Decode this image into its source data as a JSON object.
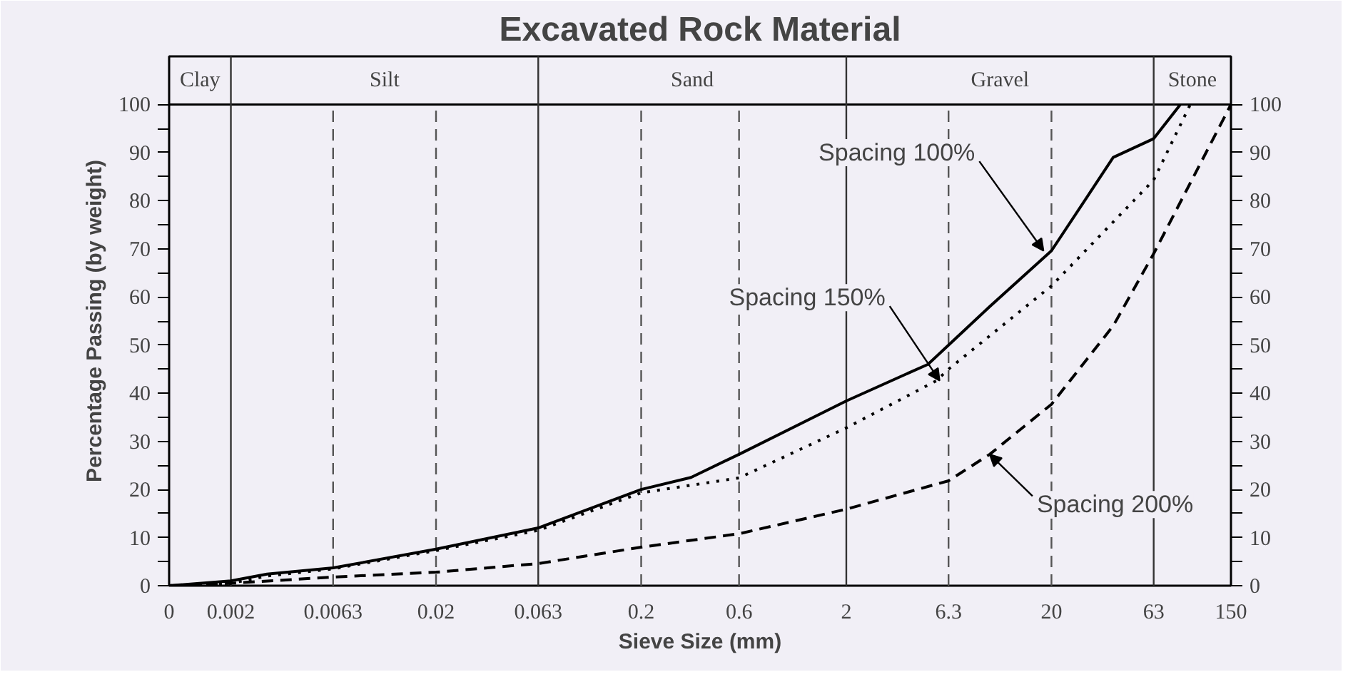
{
  "chart_data": {
    "type": "line",
    "title": "Excavated Rock Material",
    "xlabel": "Sieve Size (mm)",
    "ylabel": "Percentage Passing (by weight)",
    "log": "x",
    "xlim": [
      0.001,
      150
    ],
    "xticks": [
      {
        "value": 0.001,
        "label": "0"
      },
      0.002,
      0.0063,
      0.02,
      0.063,
      0.2,
      0.6,
      2,
      6.3,
      20,
      63,
      150
    ],
    "ylim": [
      0,
      110
    ],
    "yticks": [
      0,
      {
        "value": 5,
        "label": null
      },
      10,
      {
        "value": 15,
        "label": null
      },
      20,
      {
        "value": 25,
        "label": null
      },
      30,
      {
        "value": 35,
        "label": null
      },
      40,
      {
        "value": 45,
        "label": null
      },
      50,
      {
        "value": 55,
        "label": null
      },
      60,
      {
        "value": 65,
        "label": null
      },
      70,
      {
        "value": 75,
        "label": null
      },
      80,
      {
        "value": 85,
        "label": null
      },
      90,
      {
        "value": 95,
        "label": null
      },
      100
    ],
    "y2lim": [
      0,
      110
    ],
    "y2ticks": [
      0,
      {
        "value": 5,
        "label": null
      },
      10,
      {
        "value": 15,
        "label": null
      },
      20,
      {
        "value": 25,
        "label": null
      },
      30,
      {
        "value": 35,
        "label": null
      },
      40,
      {
        "value": 45,
        "label": null
      },
      50,
      {
        "value": 55,
        "label": null
      },
      60,
      {
        "value": 65,
        "label": null
      },
      70,
      {
        "value": 75,
        "label": null
      },
      80,
      {
        "value": 85,
        "label": null
      },
      90,
      {
        "value": 95,
        "label": null
      },
      100
    ],
    "marker": "none",
    "ref_lines": [
      {
        "axis": "y",
        "value": 100,
        "color": "#000000"
      },
      {
        "axis": "x",
        "value": 0.002,
        "color": "#333333"
      },
      {
        "axis": "x",
        "value": 0.063,
        "color": "#333333"
      },
      {
        "axis": "x",
        "value": 2,
        "color": "#333333"
      },
      {
        "axis": "x",
        "value": 63,
        "color": "#333333"
      },
      {
        "axis": "x",
        "value": 0.0063,
        "color": "#555555",
        "line_style": "dashed"
      },
      {
        "axis": "x",
        "value": 0.02,
        "color": "#555555",
        "line_style": "dashed"
      },
      {
        "axis": "x",
        "value": 0.2,
        "color": "#555555",
        "line_style": "dashed"
      },
      {
        "axis": "x",
        "value": 0.6,
        "color": "#555555",
        "line_style": "dashed"
      },
      {
        "axis": "x",
        "value": 6.3,
        "color": "#555555",
        "line_style": "dashed"
      },
      {
        "axis": "x",
        "value": 20,
        "color": "#555555",
        "line_style": "dashed"
      }
    ],
    "series": [
      {
        "color": "#000000",
        "line_style": "solid",
        "x": [
          0.001,
          0.002,
          0.003,
          0.0063,
          0.02,
          0.063,
          0.2,
          0.35,
          0.6,
          2,
          5,
          6.3,
          10,
          20,
          40,
          63,
          85
        ],
        "values": [
          0,
          1,
          2.4,
          3.7,
          7.6,
          12,
          20,
          22.5,
          27.3,
          38.4,
          46,
          50,
          58,
          69.6,
          89,
          92.9,
          100
        ]
      },
      {
        "color": "#000000",
        "line_style": "dotted",
        "x": [
          0.001,
          0.002,
          0.003,
          0.0063,
          0.02,
          0.063,
          0.2,
          0.6,
          2,
          5.5,
          6.3,
          20,
          63,
          95
        ],
        "values": [
          0,
          0.5,
          2,
          3.5,
          7.3,
          11.5,
          19.3,
          22.4,
          32.8,
          42.6,
          45,
          62.3,
          84.3,
          100
        ]
      },
      {
        "color": "#000000",
        "line_style": "dashed",
        "x": [
          0.001,
          0.002,
          0.0063,
          0.02,
          0.063,
          0.2,
          0.6,
          2,
          6.3,
          10,
          20,
          40,
          63,
          150
        ],
        "values": [
          0,
          0.5,
          1.8,
          2.8,
          4.6,
          8,
          10.8,
          15.9,
          21.8,
          27.3,
          37.7,
          54,
          69,
          100
        ]
      }
    ],
    "annotations": [
      {
        "text": "Spacing 100%",
        "x": 18.3,
        "y": 69.6
      },
      {
        "text": "Spacing 150%",
        "x": 5.7,
        "y": 42.6
      },
      {
        "text": "Spacing 200%",
        "x": 10,
        "y": 27.3
      },
      "Clay",
      "Silt",
      "Sand",
      "Gravel",
      "Stone"
    ]
  }
}
